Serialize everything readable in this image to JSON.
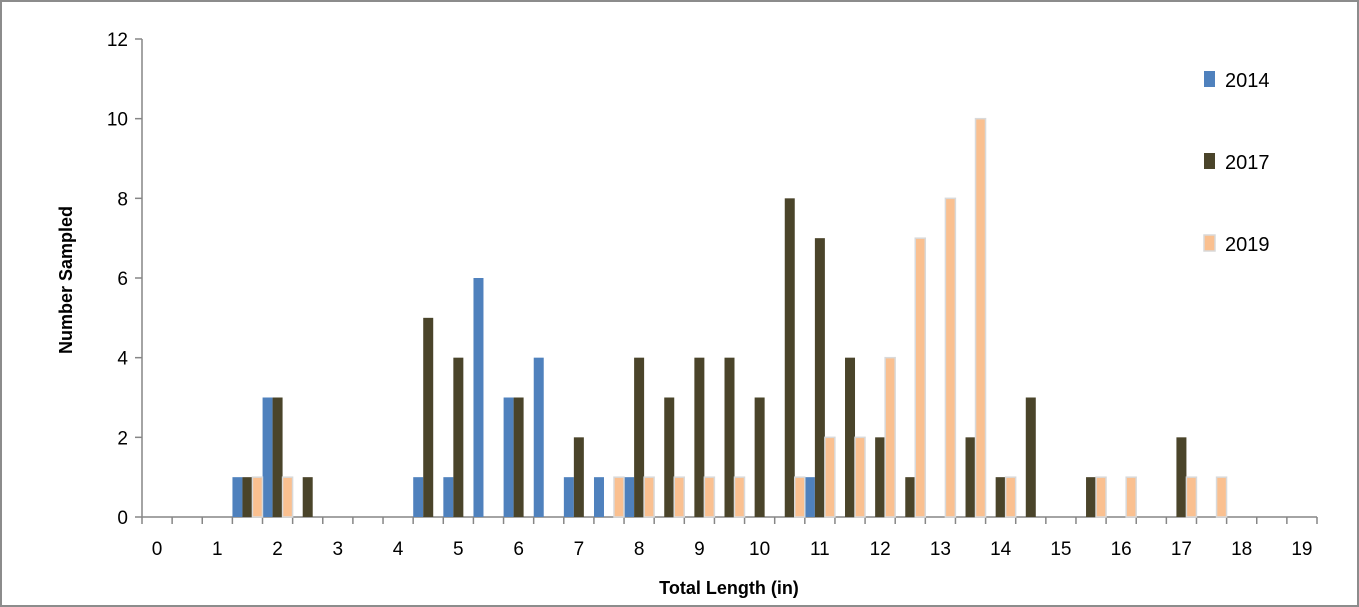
{
  "chart_data": {
    "type": "bar",
    "title": "",
    "xlabel": "Total Length (in)",
    "ylabel": "Number Sampled",
    "ylim": [
      0,
      12
    ],
    "yticks": [
      "0",
      "2",
      "4",
      "6",
      "8",
      "10",
      "12"
    ],
    "categories": [
      "0",
      "0.5",
      "1",
      "1.5",
      "2",
      "2.5",
      "3",
      "3.5",
      "4",
      "4.5",
      "5",
      "5.5",
      "6",
      "6.5",
      "7",
      "7.5",
      "8",
      "8.5",
      "9",
      "9.5",
      "10",
      "10.5",
      "11",
      "11.5",
      "12",
      "12.5",
      "13",
      "13.5",
      "14",
      "14.5",
      "15",
      "15.5",
      "16",
      "16.5",
      "17",
      "17.5",
      "18",
      "18.5",
      "19"
    ],
    "xtick_labels": [
      "0",
      "1",
      "2",
      "3",
      "4",
      "5",
      "6",
      "7",
      "8",
      "9",
      "10",
      "11",
      "12",
      "13",
      "14",
      "15",
      "16",
      "17",
      "18",
      "19"
    ],
    "legend_position": "right",
    "grid": false,
    "series": [
      {
        "name": "2014",
        "color": "#4f81bd",
        "values": [
          0,
          0,
          0,
          1,
          3,
          0,
          0,
          0,
          0,
          1,
          1,
          6,
          3,
          4,
          1,
          1,
          1,
          0,
          0,
          0,
          0,
          0,
          1,
          0,
          0,
          0,
          0,
          0,
          0,
          0,
          0,
          0,
          0,
          0,
          0,
          0,
          0,
          0,
          0
        ]
      },
      {
        "name": "2017",
        "color": "#4a442a",
        "values": [
          0,
          0,
          0,
          1,
          3,
          1,
          0,
          0,
          0,
          5,
          4,
          0,
          3,
          0,
          2,
          0,
          4,
          3,
          4,
          4,
          3,
          8,
          7,
          4,
          2,
          1,
          0,
          2,
          1,
          3,
          0,
          1,
          0,
          0,
          2,
          0,
          0,
          0,
          0
        ]
      },
      {
        "name": "2019",
        "color": "#fac090",
        "values": [
          0,
          0,
          0,
          1,
          1,
          0,
          0,
          0,
          0,
          0,
          0,
          0,
          0,
          0,
          0,
          1,
          1,
          1,
          1,
          1,
          0,
          1,
          2,
          2,
          4,
          7,
          8,
          10,
          1,
          0,
          0,
          1,
          1,
          0,
          1,
          1,
          0,
          0,
          0
        ]
      }
    ]
  }
}
